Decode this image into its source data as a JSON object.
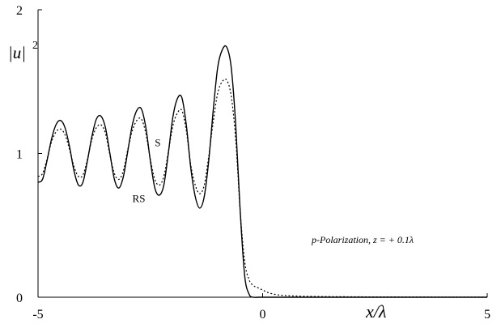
{
  "chart_data": {
    "type": "line",
    "xlabel": "x/λ",
    "ylabel": "|u|",
    "ylabel_sup": "2",
    "xlim": [
      -5,
      5
    ],
    "ylim": [
      0,
      2
    ],
    "x_ticks": [
      -5,
      0,
      5
    ],
    "x_tick_labels": [
      "-5",
      "0",
      "5"
    ],
    "y_ticks": [
      0,
      1,
      2
    ],
    "y_tick_labels": [
      "0",
      "1",
      "2"
    ],
    "grid": false,
    "annotation": "p-Polarization, z = + 0.1λ",
    "series": [
      {
        "name": "RS",
        "style": "solid",
        "x": [
          -5,
          -4.9,
          -4.8,
          -4.7,
          -4.6,
          -4.5,
          -4.4,
          -4.3,
          -4.2,
          -4.1,
          -4.0,
          -3.9,
          -3.8,
          -3.7,
          -3.6,
          -3.5,
          -3.4,
          -3.3,
          -3.2,
          -3.1,
          -3.0,
          -2.9,
          -2.8,
          -2.7,
          -2.6,
          -2.5,
          -2.4,
          -2.3,
          -2.2,
          -2.1,
          -2.0,
          -1.9,
          -1.8,
          -1.7,
          -1.6,
          -1.5,
          -1.4,
          -1.3,
          -1.2,
          -1.1,
          -1.0,
          -0.9,
          -0.8,
          -0.7,
          -0.6,
          -0.5,
          -0.4,
          -0.3,
          -0.2,
          -0.1,
          0.0,
          0.1,
          0.2,
          0.3,
          0.5,
          1.0,
          2.0,
          3.0,
          4.0,
          5.0
        ],
        "y": [
          0.8,
          0.82,
          0.95,
          1.1,
          1.2,
          1.23,
          1.18,
          1.05,
          0.88,
          0.78,
          0.8,
          0.95,
          1.12,
          1.24,
          1.26,
          1.18,
          1.0,
          0.82,
          0.76,
          0.84,
          1.02,
          1.2,
          1.3,
          1.31,
          1.18,
          0.95,
          0.76,
          0.71,
          0.78,
          1.0,
          1.25,
          1.38,
          1.39,
          1.2,
          0.9,
          0.7,
          0.62,
          0.7,
          0.95,
          1.3,
          1.6,
          1.72,
          1.74,
          1.6,
          1.2,
          0.6,
          0.15,
          0.02,
          0.0,
          0.0,
          0.0,
          0.0,
          0.0,
          0.0,
          0.0,
          0.0,
          0.0,
          0.0,
          0.0,
          0.0
        ]
      },
      {
        "name": "S",
        "style": "dotted",
        "x": [
          -5,
          -4.9,
          -4.8,
          -4.7,
          -4.6,
          -4.5,
          -4.4,
          -4.3,
          -4.2,
          -4.1,
          -4.0,
          -3.9,
          -3.8,
          -3.7,
          -3.6,
          -3.5,
          -3.4,
          -3.3,
          -3.2,
          -3.1,
          -3.0,
          -2.9,
          -2.8,
          -2.7,
          -2.6,
          -2.5,
          -2.4,
          -2.3,
          -2.2,
          -2.1,
          -2.0,
          -1.9,
          -1.8,
          -1.7,
          -1.6,
          -1.5,
          -1.4,
          -1.3,
          -1.2,
          -1.1,
          -1.0,
          -0.9,
          -0.8,
          -0.7,
          -0.6,
          -0.5,
          -0.4,
          -0.3,
          -0.2,
          -0.1,
          0.0,
          0.1,
          0.2,
          0.3,
          0.5,
          1.0,
          2.0,
          3.0,
          4.0,
          5.0
        ],
        "y": [
          0.84,
          0.86,
          0.96,
          1.08,
          1.15,
          1.17,
          1.13,
          1.03,
          0.91,
          0.84,
          0.85,
          0.96,
          1.1,
          1.18,
          1.2,
          1.14,
          0.99,
          0.86,
          0.82,
          0.88,
          1.03,
          1.16,
          1.23,
          1.24,
          1.14,
          0.96,
          0.82,
          0.78,
          0.84,
          1.01,
          1.19,
          1.28,
          1.3,
          1.16,
          0.92,
          0.78,
          0.72,
          0.78,
          0.98,
          1.22,
          1.42,
          1.5,
          1.51,
          1.4,
          1.1,
          0.6,
          0.25,
          0.12,
          0.08,
          0.065,
          0.05,
          0.035,
          0.025,
          0.018,
          0.012,
          0.006,
          0.003,
          0.002,
          0.001,
          0.001
        ]
      }
    ],
    "series_labels": [
      {
        "text": "S",
        "x": -2.4,
        "y": 1.08
      },
      {
        "text": "RS",
        "x": -2.9,
        "y": 0.69
      }
    ]
  }
}
